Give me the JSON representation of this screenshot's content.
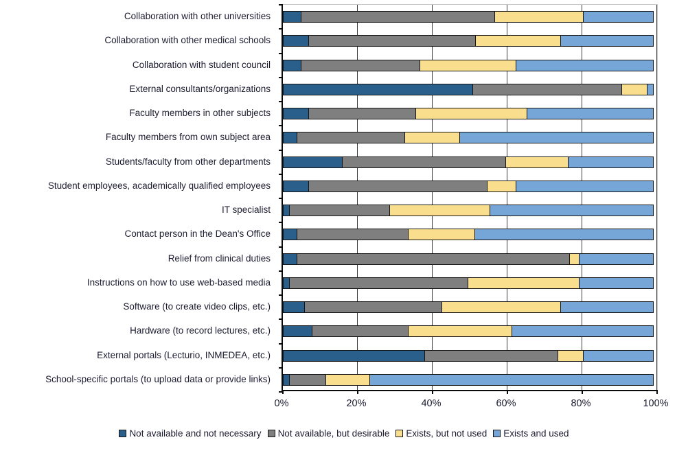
{
  "chart_data": {
    "type": "bar",
    "orientation": "horizontal",
    "stacked": true,
    "title": "",
    "xlabel": "",
    "ylabel": "",
    "xlim": [
      0,
      100
    ],
    "grid": true,
    "legend_position": "bottom",
    "x_ticks": [
      {
        "value": 0,
        "label": "0%"
      },
      {
        "value": 20,
        "label": "20%"
      },
      {
        "value": 40,
        "label": "40%"
      },
      {
        "value": 60,
        "label": "60%"
      },
      {
        "value": 80,
        "label": "80%"
      },
      {
        "value": 100,
        "label": "100%"
      }
    ],
    "categories": [
      "Collaboration with other universities",
      "Collaboration with other medical schools",
      "Collaboration with student council",
      "External consultants/organizations",
      "Faculty members in other subjects",
      "Faculty members from own subject area",
      "Students/faculty from other departments",
      "Student employees, academically qualified employees",
      "IT specialist",
      "Contact person in the Dean's Office",
      "Relief from clinical duties",
      "Instructions on how to use web-based media",
      "Software (to create video clips, etc.)",
      "Hardware (to record lectures, etc.)",
      "External portals (Lecturio, INMEDEA, etc.)",
      "School-specific portals (to upload data or provide links)"
    ],
    "series": [
      {
        "name": "Not available and not necessary",
        "color": "#2A5F8C",
        "values": [
          5,
          7,
          5,
          51,
          7,
          4,
          16,
          7,
          2,
          4,
          4,
          2,
          6,
          8,
          38,
          2
        ]
      },
      {
        "name": "Not available, but desirable",
        "color": "#7F7F7F",
        "values": [
          52,
          45,
          32,
          40,
          29,
          29,
          44,
          48,
          27,
          30,
          73,
          48,
          37,
          26,
          36,
          10
        ]
      },
      {
        "name": "Exists, but not used",
        "color": "#F9DE8D",
        "values": [
          24,
          23,
          26,
          7,
          30,
          15,
          17,
          8,
          27,
          18,
          3,
          30,
          32,
          28,
          7,
          12
        ]
      },
      {
        "name": "Exists and used",
        "color": "#76A5D8",
        "values": [
          19,
          25,
          37,
          2,
          34,
          52,
          23,
          37,
          44,
          48,
          20,
          20,
          25,
          38,
          19,
          76
        ]
      }
    ],
    "unit": "percent"
  }
}
